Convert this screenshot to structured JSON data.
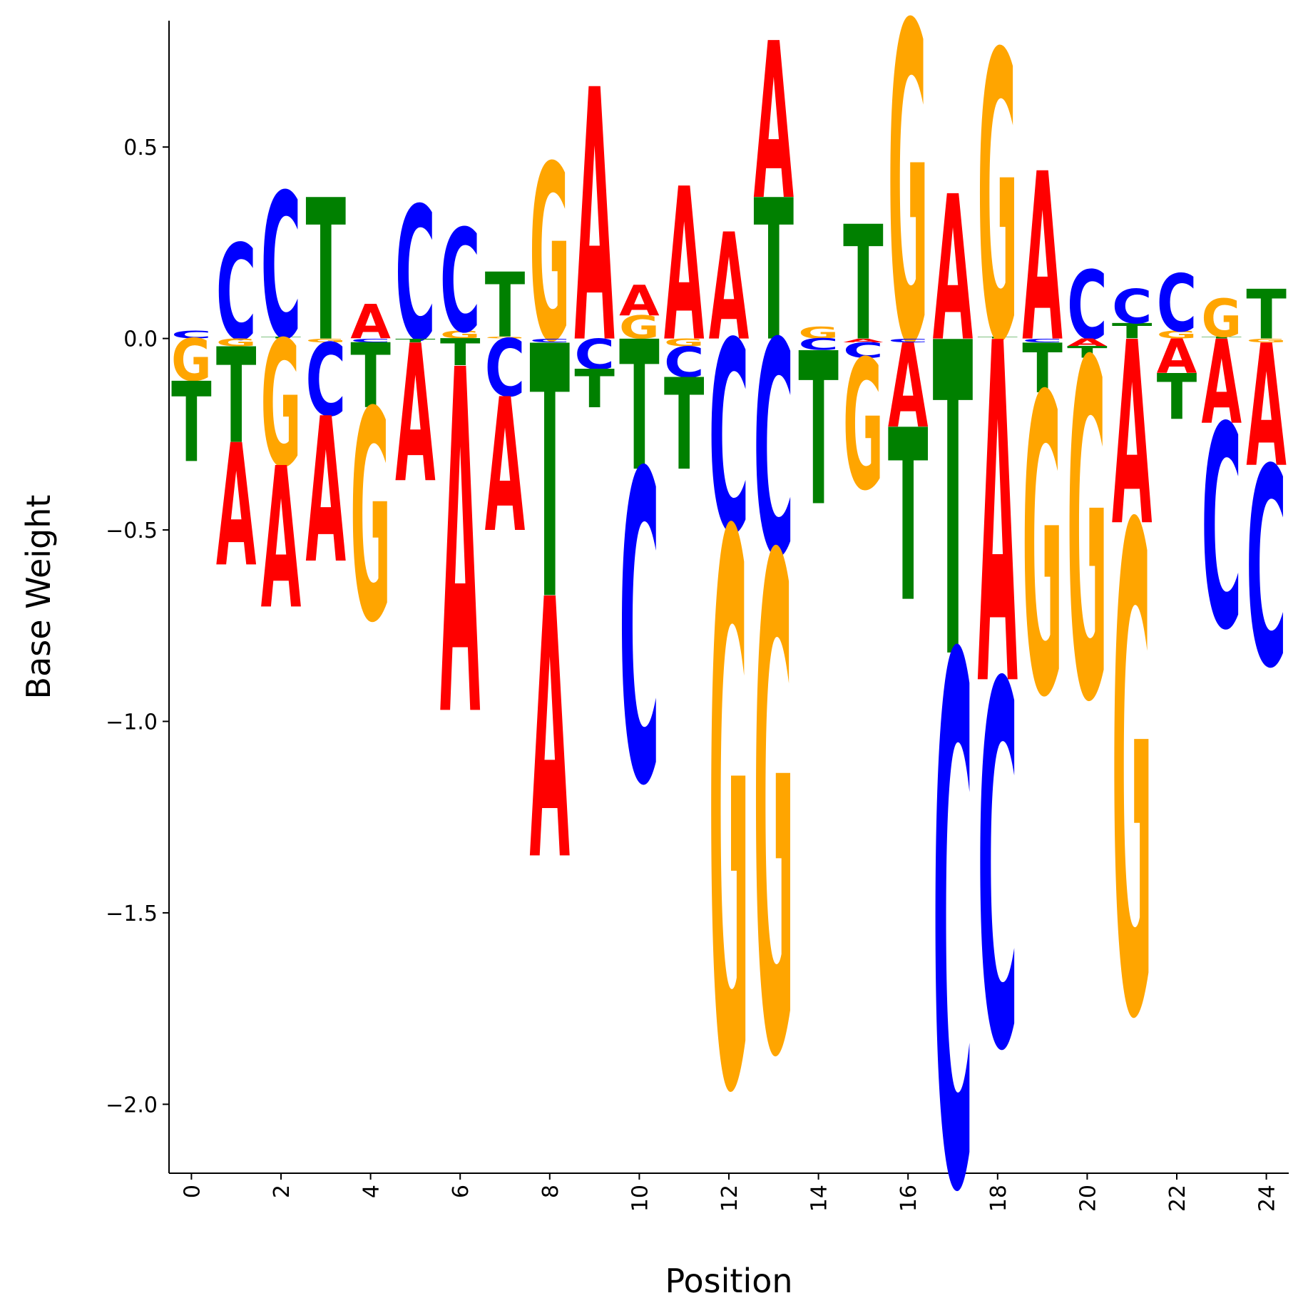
{
  "chart_data": {
    "type": "logo",
    "xlabel": "Position",
    "ylabel": "Base Weight",
    "x": [
      0,
      1,
      2,
      3,
      4,
      5,
      6,
      7,
      8,
      9,
      10,
      11,
      12,
      13,
      14,
      15,
      16,
      17,
      18,
      19,
      20,
      21,
      22,
      23,
      24
    ],
    "series": [
      {
        "name": "A",
        "color": "#ff0000",
        "values": [
          0,
          -0.32,
          -0.37,
          -0.38,
          0.09,
          -0.36,
          -0.9,
          -0.35,
          -0.68,
          0.66,
          0.08,
          0.4,
          0.28,
          0.41,
          0,
          -0.01,
          -0.22,
          0.38,
          -0.89,
          0.44,
          -0.02,
          -0.48,
          -0.09,
          -0.22,
          -0.32
        ]
      },
      {
        "name": "C",
        "color": "#0000ff",
        "values": [
          0.02,
          0.25,
          0.38,
          -0.19,
          -0.01,
          0.35,
          0.27,
          -0.15,
          -0.01,
          -0.08,
          -0.81,
          -0.08,
          -0.5,
          -0.56,
          -0.03,
          -0.04,
          -0.01,
          -1.38,
          -0.95,
          -0.01,
          0.18,
          0.09,
          0.15,
          -0.53,
          -0.52
        ]
      },
      {
        "name": "G",
        "color": "#ffa500",
        "values": [
          -0.11,
          -0.02,
          -0.33,
          -0.01,
          -0.55,
          0,
          0.02,
          0.005,
          0.46,
          0,
          0.06,
          -0.02,
          -1.44,
          -1.29,
          0.03,
          -0.34,
          0.83,
          0,
          0.75,
          -0.78,
          -0.88,
          -1.27,
          0.02,
          0.1,
          -0.01
        ]
      },
      {
        "name": "T",
        "color": "#008000",
        "values": [
          -0.21,
          -0.25,
          0.005,
          0.37,
          -0.17,
          -0.01,
          -0.07,
          0.17,
          -0.66,
          -0.1,
          -0.34,
          -0.24,
          0,
          0.37,
          -0.4,
          0.3,
          -0.45,
          -0.82,
          0.005,
          -0.13,
          -0.03,
          0.04,
          -0.12,
          0.005,
          0.13
        ]
      }
    ],
    "xlim": [
      -0.5,
      24.5
    ],
    "ylim": [
      -2.18,
      0.83
    ],
    "xticks": [
      0,
      2,
      4,
      6,
      8,
      10,
      12,
      14,
      16,
      18,
      20,
      22,
      24
    ],
    "yticks": [
      {
        "value": -2.0,
        "label": "−2.0"
      },
      {
        "value": -1.5,
        "label": "−1.5"
      },
      {
        "value": -1.0,
        "label": "−1.0"
      },
      {
        "value": -0.5,
        "label": "−0.5"
      },
      {
        "value": 0.0,
        "label": "0.0"
      },
      {
        "value": 0.5,
        "label": "0.5"
      }
    ]
  }
}
